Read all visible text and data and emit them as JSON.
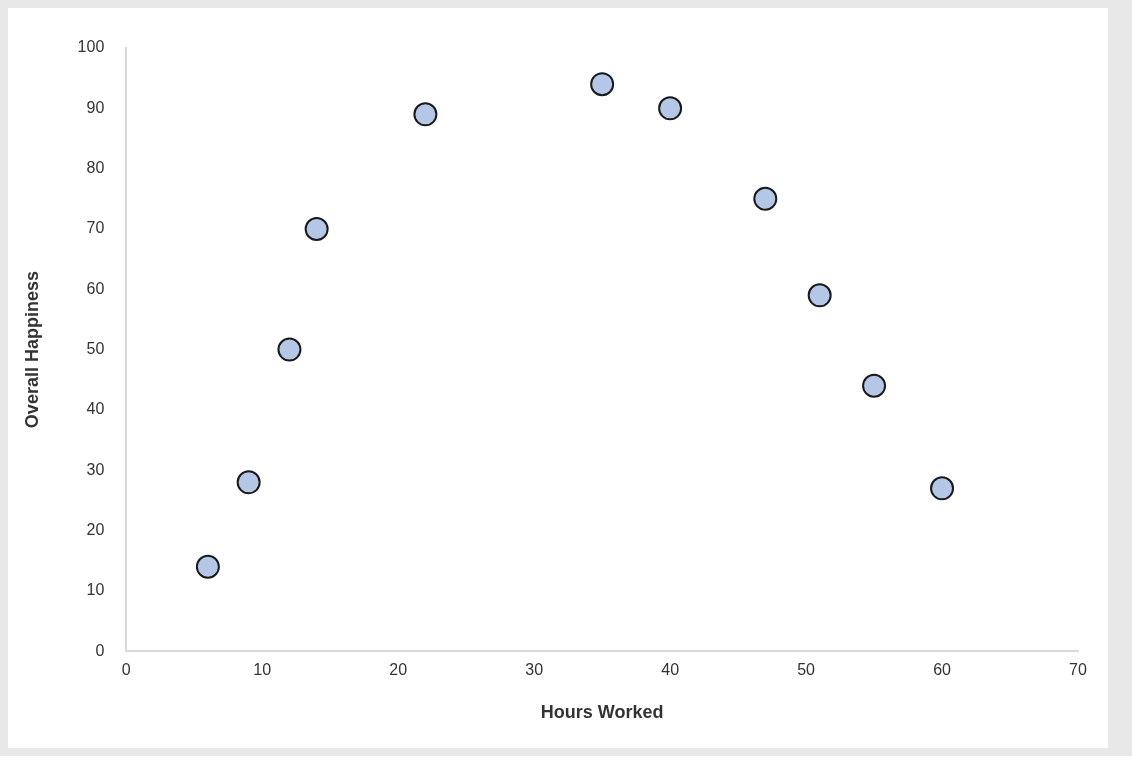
{
  "chart_data": {
    "type": "scatter",
    "xlabel": "Hours Worked",
    "ylabel": "Overall Happiness",
    "x": [
      6,
      9,
      12,
      14,
      22,
      35,
      40,
      47,
      51,
      55,
      60
    ],
    "values": [
      14,
      28,
      50,
      70,
      89,
      94,
      90,
      75,
      59,
      44,
      27
    ],
    "color": "#b4c7e7",
    "marker": "circle",
    "grid": false,
    "legend": false,
    "xlim": [
      0,
      70
    ],
    "xticks": [
      0,
      10,
      20,
      30,
      40,
      50,
      60,
      70
    ],
    "ylim": [
      0,
      100
    ],
    "yticks": [
      0,
      10,
      20,
      30,
      40,
      50,
      60,
      70,
      80,
      90,
      100
    ]
  }
}
